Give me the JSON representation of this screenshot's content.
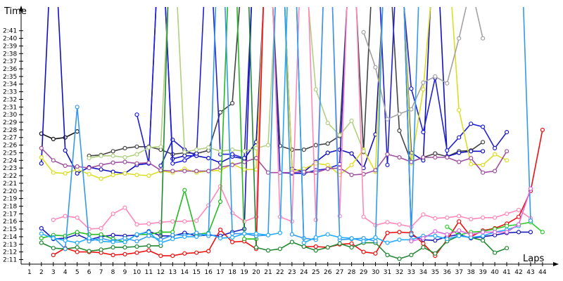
{
  "chart_data": {
    "type": "line",
    "title": "",
    "xlabel": "Laps",
    "ylabel": "Time",
    "x": [
      1,
      2,
      3,
      4,
      5,
      6,
      7,
      8,
      9,
      10,
      11,
      12,
      13,
      14,
      15,
      16,
      17,
      18,
      19,
      20,
      21,
      22,
      23,
      24,
      25,
      26,
      27,
      28,
      29,
      30,
      31,
      32,
      33,
      34,
      35,
      36,
      37,
      38,
      39,
      40,
      41,
      42,
      43,
      44
    ],
    "y_ticks": [
      "2:11",
      "2:12",
      "2:13",
      "2:14",
      "2:15",
      "2:16",
      "2:17",
      "2:18",
      "2:19",
      "2:20",
      "2:21",
      "2:22",
      "2:23",
      "2:24",
      "2:25",
      "2:26",
      "2:27",
      "2:28",
      "2:29",
      "2:30",
      "2:31",
      "2:32",
      "2:33",
      "2:34",
      "2:35",
      "2:36",
      "2:37",
      "2:38",
      "2:39",
      "2:40",
      "2:41"
    ],
    "ylim": [
      130.4,
      163
    ],
    "xlim": [
      0.3,
      44.3
    ],
    "grid": false,
    "legend": "none",
    "series": [
      {
        "color": "#111111",
        "values": [
          null,
          147.5,
          146.8,
          147,
          147.8,
          null,
          null,
          null,
          null,
          null,
          null,
          null,
          null,
          null,
          null,
          null,
          null,
          null,
          null,
          null,
          null,
          null,
          null,
          null,
          null,
          null,
          null,
          null,
          null,
          null,
          null,
          null,
          null,
          null,
          null,
          null,
          null,
          null,
          null,
          null,
          null,
          null,
          null,
          null
        ]
      },
      {
        "color": "#444444",
        "values": [
          null,
          null,
          null,
          null,
          null,
          144.6,
          144.7,
          145.2,
          145.6,
          145.8,
          145.8,
          145.4,
          144.8,
          145,
          144.9,
          145.3,
          150.3,
          151.5,
          null,
          null,
          null,
          145.9,
          145.4,
          145.4,
          146,
          146.2,
          147.2,
          null,
          145.1,
          null,
          null,
          147.9,
          143.8,
          144.4,
          144.9,
          144.5,
          145.2,
          145.3,
          146.4,
          null,
          null,
          null,
          null,
          null
        ]
      },
      {
        "color": "#1010c0",
        "values": [
          null,
          143.6,
          null,
          145.3,
          142.3,
          143.1,
          142.8,
          142.5,
          142.3,
          143.4,
          143.6,
          null,
          144.2,
          144.6,
          144.6,
          144.3,
          143.7,
          144.5,
          144.2,
          146.4,
          null,
          null,
          142.9,
          142.5,
          143.8,
          145,
          145.4,
          144.9,
          143,
          147.4,
          null,
          null,
          145,
          144,
          null,
          144.5,
          145,
          145.2,
          145.2,
          null,
          null,
          null,
          null,
          null
        ]
      },
      {
        "color": "#2020d0",
        "values": [
          null,
          null,
          null,
          null,
          null,
          null,
          null,
          null,
          null,
          null,
          null,
          143.3,
          146.7,
          145.4,
          144.6,
          null,
          144.8,
          144.8,
          144.3,
          null,
          null,
          142.4,
          142.3,
          142.3,
          142.7,
          142.9,
          143.5,
          null,
          null,
          null,
          143.4,
          null,
          153.4,
          147.7,
          154.8,
          145.3,
          147,
          148.8,
          148.4,
          145.6,
          147.7,
          null,
          null,
          null
        ]
      },
      {
        "color": "#1c1ce0",
        "values": [
          null,
          null,
          null,
          null,
          null,
          null,
          null,
          null,
          null,
          150,
          143.6,
          null,
          143.6,
          144,
          144.9,
          null,
          null,
          null,
          null,
          null,
          null,
          null,
          null,
          null,
          null,
          null,
          null,
          null,
          null,
          null,
          null,
          null,
          null,
          null,
          null,
          null,
          null,
          null,
          null,
          null,
          null,
          null,
          null,
          null
        ]
      },
      {
        "color": "#1a1ab8",
        "values": [
          null,
          135.1,
          133.7,
          133.8,
          134.3,
          133.6,
          134,
          134.2,
          134.1,
          134.2,
          134.7,
          134.1,
          134.1,
          134.5,
          134.1,
          134.2,
          134.1,
          134.6,
          135,
          null,
          null,
          null,
          null,
          null,
          null,
          null,
          null,
          null,
          null,
          null,
          null,
          null,
          134.2,
          133.6,
          133.5,
          134,
          134.3,
          133.8,
          134,
          134.2,
          134.5,
          134.6,
          134.6,
          null
        ]
      },
      {
        "color": "#dddd22",
        "values": [
          null,
          144.4,
          142.4,
          142.3,
          142.8,
          142.2,
          141.6,
          142.1,
          142.3,
          142.1,
          142,
          142.6,
          142.4,
          142.9,
          142.4,
          142.6,
          142.7,
          143.5,
          142.8,
          142.8,
          null,
          null,
          142.6,
          142.9,
          143.6,
          143.4,
          142.1,
          143.4,
          145.4,
          142.5,
          null,
          null,
          143.6,
          153.3,
          null,
          null,
          150.6,
          143.5,
          143.4,
          144.8,
          144,
          null,
          null,
          null
        ]
      },
      {
        "color": "#a2a2a2",
        "values": [
          null,
          null,
          null,
          null,
          null,
          null,
          null,
          null,
          null,
          null,
          null,
          null,
          null,
          null,
          null,
          null,
          null,
          null,
          null,
          null,
          null,
          null,
          null,
          null,
          null,
          null,
          null,
          null,
          160.8,
          156.2,
          149.4,
          150.1,
          150.7,
          154.2,
          155,
          154.1,
          160,
          null,
          160,
          null,
          null,
          null,
          null,
          null
        ]
      },
      {
        "color": "#b0d080",
        "values": [
          null,
          null,
          null,
          null,
          null,
          144.3,
          144.6,
          144.6,
          144.4,
          144.8,
          145.7,
          145.8,
          null,
          145.1,
          145.4,
          145.7,
          145.2,
          145.4,
          145.2,
          145.6,
          146,
          null,
          null,
          null,
          153.3,
          148.9,
          147.3,
          149.2,
          145.2,
          null,
          null,
          null,
          null,
          null,
          null,
          null,
          null,
          null,
          null,
          null,
          null,
          null,
          null,
          null
        ]
      },
      {
        "color": "#9f4fa0",
        "values": [
          null,
          145.6,
          144,
          143.3,
          143.2,
          143,
          143.4,
          143.7,
          143.8,
          143.6,
          143.7,
          142.7,
          142.6,
          142.6,
          142.6,
          142.6,
          143.1,
          143.4,
          143.8,
          144.3,
          142.4,
          142.4,
          142.4,
          142.5,
          142.4,
          142.9,
          143,
          142.1,
          142.2,
          142.7,
          144.8,
          144.4,
          143.8,
          144.4,
          144.4,
          144.4,
          143.8,
          144.3,
          142.4,
          142.6,
          145.2,
          null,
          null,
          null
        ]
      },
      {
        "color": "#ff88bb",
        "values": [
          null,
          null,
          136.2,
          136.7,
          136.5,
          135,
          135.1,
          137,
          137.8,
          135.6,
          135.7,
          135.9,
          136,
          136,
          136.1,
          138.1,
          140.6,
          137.1,
          136,
          136.6,
          null,
          136.6,
          136,
          null,
          136.2,
          null,
          136.7,
          null,
          136.6,
          135.5,
          135.9,
          135.6,
          135.3,
          136.9,
          136.4,
          136.5,
          136.7,
          136.3,
          136.5,
          136.5,
          137,
          137.5,
          136.4,
          null
        ]
      },
      {
        "color": "#ee1010",
        "values": [
          null,
          null,
          131.6,
          132.5,
          132,
          132,
          131.9,
          131.6,
          131.7,
          131.9,
          132.2,
          131.5,
          131.5,
          131.8,
          131.9,
          132.1,
          134.9,
          133.3,
          133.4,
          132.4,
          null,
          null,
          null,
          132.7,
          132.7,
          132.6,
          133,
          133.1,
          132,
          131.8,
          134.5,
          134.6,
          134.5,
          133.1,
          131.5,
          133.6,
          136,
          134,
          134.8,
          135.1,
          135.7,
          136.6,
          140,
          148
        ]
      },
      {
        "color": "#22bb22",
        "values": [
          null,
          133.8,
          134.2,
          134.1,
          134.6,
          134.3,
          134.3,
          133.7,
          133.3,
          134.3,
          134.3,
          134.6,
          134.6,
          140.1,
          134.3,
          134.5,
          138.6,
          null,
          133.7,
          133.7,
          null,
          null,
          null,
          null,
          null,
          null,
          null,
          null,
          null,
          null,
          null,
          null,
          null,
          null,
          null,
          null,
          null,
          null,
          null,
          null,
          null,
          null,
          null,
          null
        ]
      },
      {
        "color": "#2ecc2e",
        "values": [
          null,
          null,
          null,
          null,
          null,
          null,
          null,
          null,
          null,
          null,
          null,
          null,
          null,
          null,
          null,
          null,
          null,
          null,
          null,
          null,
          null,
          null,
          null,
          null,
          null,
          null,
          null,
          null,
          null,
          null,
          null,
          null,
          null,
          null,
          null,
          135.3,
          134.2,
          134.6,
          134.7,
          135,
          135.4,
          135.6,
          135.9,
          134.6
        ]
      },
      {
        "color": "#228833",
        "values": [
          null,
          133.2,
          132.5,
          132.4,
          132.6,
          132.1,
          132.3,
          132.6,
          132.6,
          132.7,
          132.8,
          132.8,
          null,
          null,
          null,
          null,
          null,
          null,
          null,
          132.6,
          132.2,
          132.4,
          133.3,
          132.7,
          132.2,
          132.6,
          133.1,
          132.6,
          133.2,
          133.2,
          131.6,
          131.1,
          131.6,
          132.6,
          131.8,
          133.4,
          134.1,
          133.9,
          133.5,
          131.9,
          132.5,
          null,
          null,
          null
        ]
      },
      {
        "color": "#3399ee",
        "values": [
          null,
          null,
          133.9,
          132.4,
          151,
          133.4,
          133.8,
          133.4,
          133.8,
          133.4,
          134.1,
          133.6,
          134.2,
          134.2,
          134.5,
          134.1,
          null,
          134.4,
          134.4,
          134.1,
          134.2,
          null,
          134.3,
          133.8,
          133.6,
          null,
          133.6,
          133.7,
          133.8,
          133.4,
          null,
          null,
          134.3,
          null,
          null,
          null,
          null,
          null,
          null,
          null,
          null,
          null,
          136.1,
          null
        ]
      },
      {
        "color": "#22aaff",
        "values": [
          null,
          134.4,
          133.8,
          133.5,
          133.2,
          133.8,
          133.4,
          133.3,
          133.3,
          134.3,
          134.6,
          133.2,
          133.7,
          134,
          134,
          134.4,
          133.8,
          133.9,
          134.4,
          134.4,
          134.2,
          134.5,
          null,
          133.2,
          133.9,
          134.3,
          133.9,
          133.8,
          133.4,
          133.9,
          133.2,
          133.6,
          133.6,
          134.1,
          134.1,
          133.7,
          134.1,
          133.9,
          134.1,
          134.6,
          134.9,
          135.4,
          null,
          null
        ]
      },
      {
        "color": "#dd66dd",
        "values": [
          null,
          null,
          null,
          null,
          null,
          null,
          null,
          null,
          null,
          null,
          null,
          null,
          null,
          null,
          null,
          null,
          null,
          null,
          null,
          null,
          null,
          null,
          null,
          null,
          null,
          null,
          null,
          null,
          null,
          null,
          null,
          null,
          133.4,
          133.8,
          134.7,
          134.3,
          134.8,
          134.3,
          134.6,
          134.6,
          134.6,
          135.6,
          140.3,
          null
        ]
      }
    ]
  }
}
